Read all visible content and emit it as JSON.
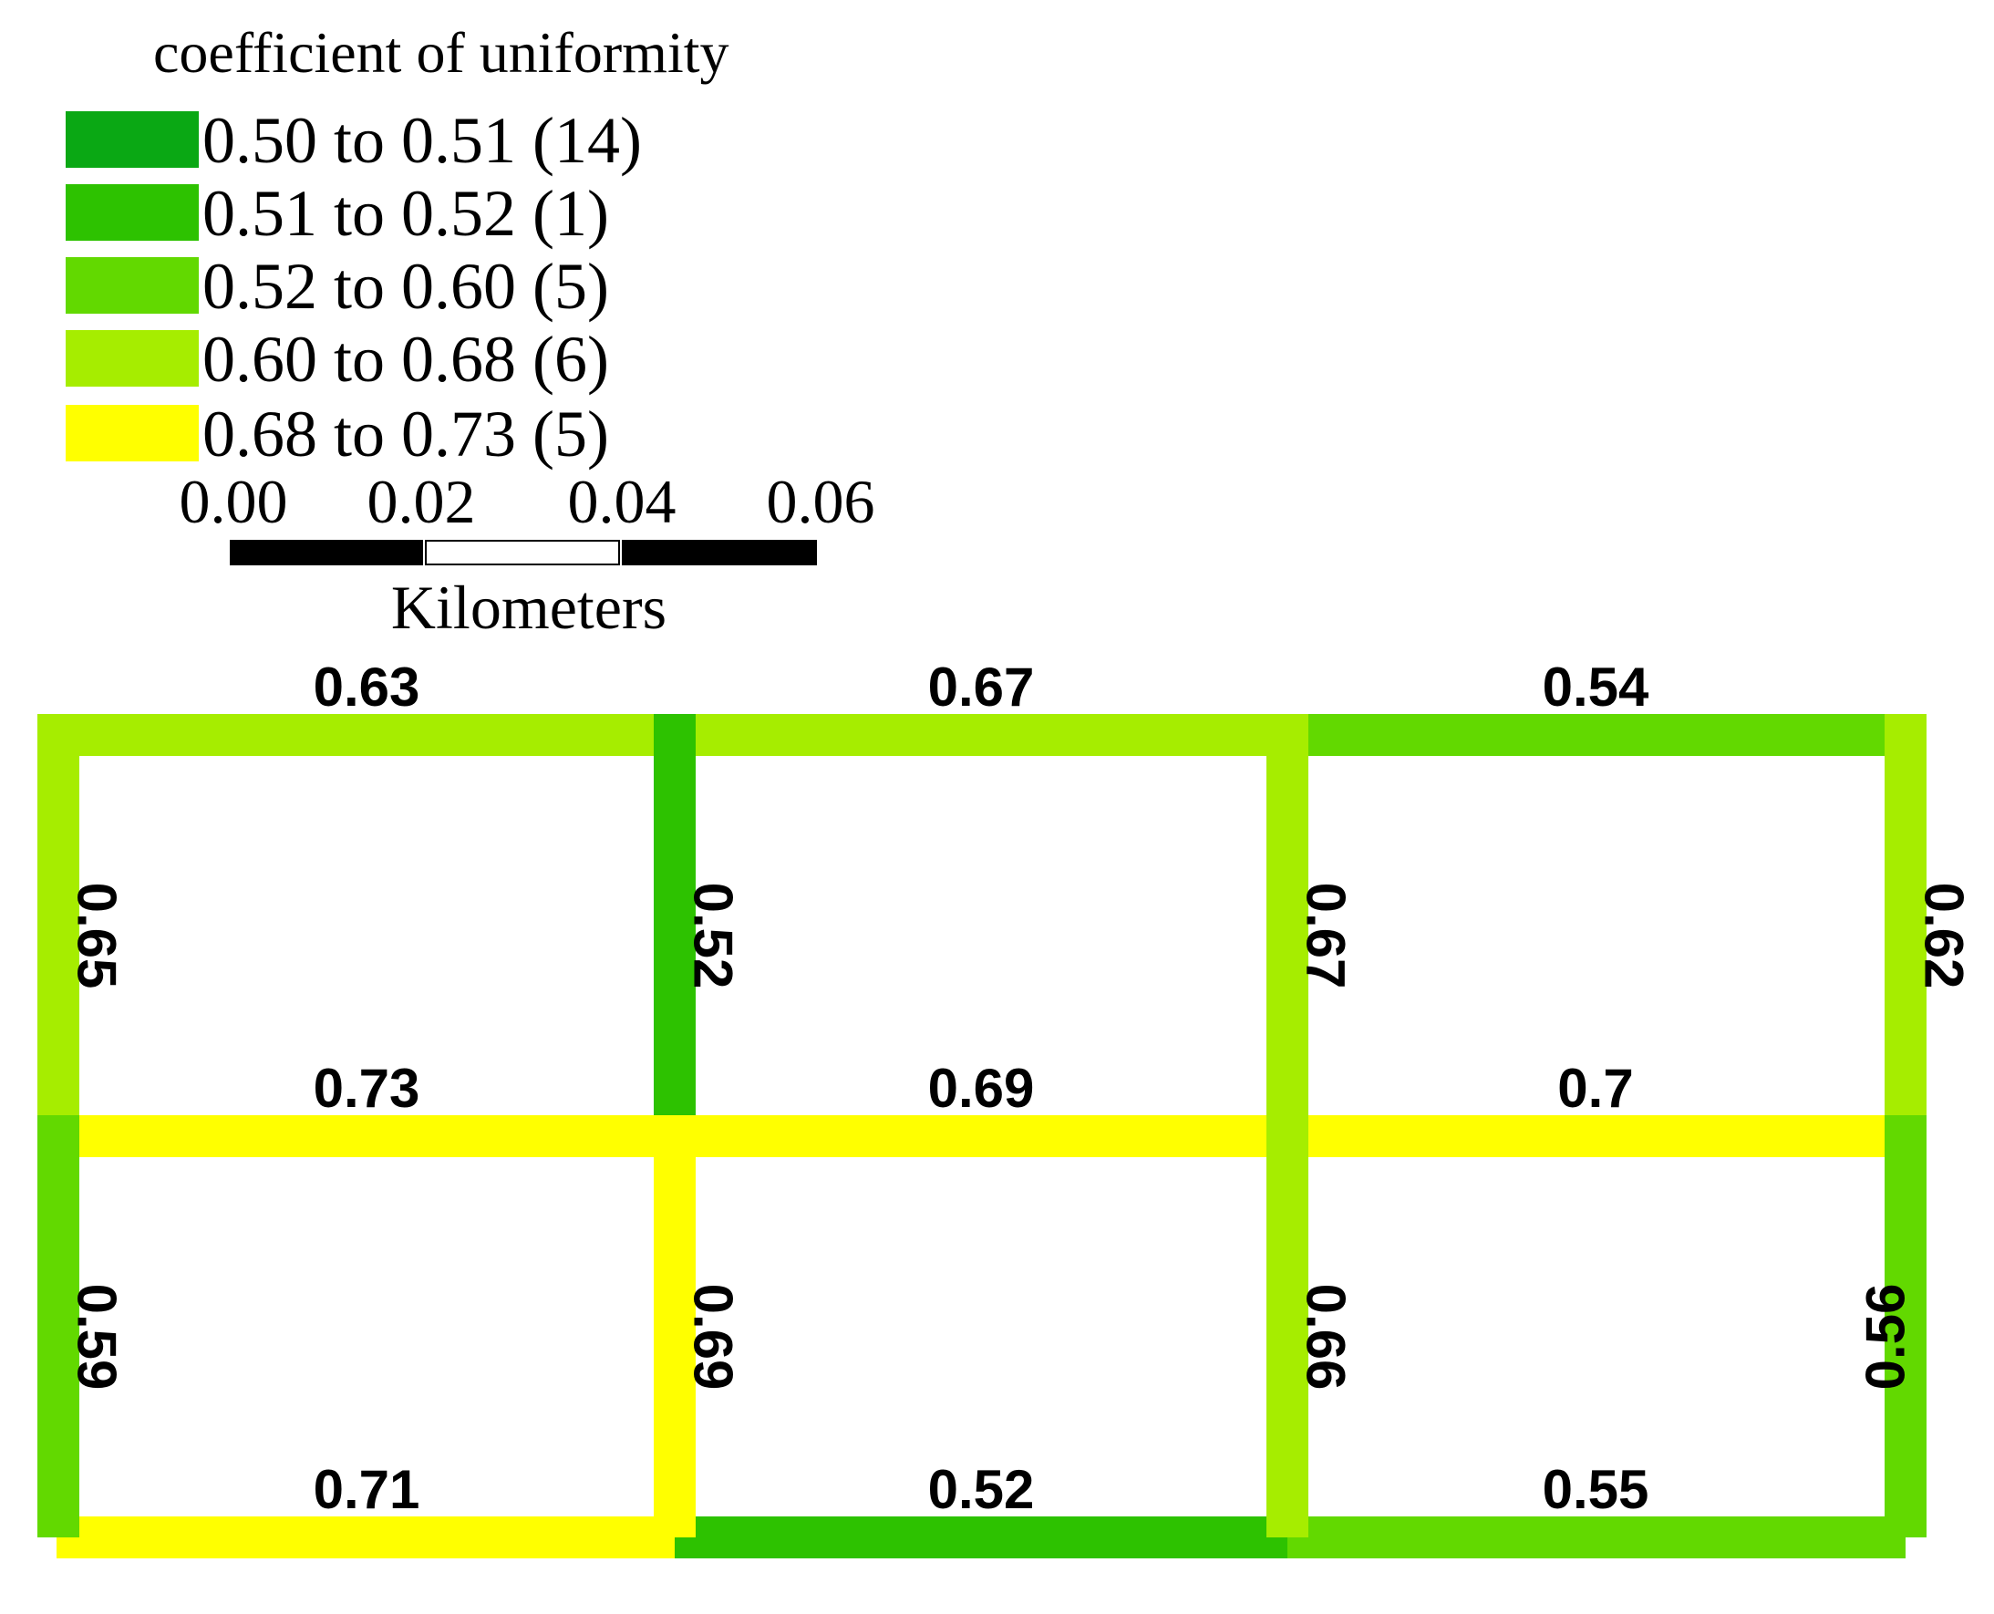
{
  "legend": {
    "title": "coefficient of uniformity",
    "classes": [
      {
        "label": "0.50 to 0.51 (14)",
        "min": 0.5,
        "max": 0.51,
        "color": "#0aa814"
      },
      {
        "label": "0.51 to 0.52 (1)",
        "min": 0.51,
        "max": 0.52,
        "color": "#2dc200"
      },
      {
        "label": "0.52 to 0.60 (5)",
        "min": 0.52,
        "max": 0.6,
        "color": "#62d900"
      },
      {
        "label": "0.60 to 0.68 (6)",
        "min": 0.6,
        "max": 0.68,
        "color": "#a6ed00"
      },
      {
        "label": "0.68 to 0.73 (5)",
        "min": 0.68,
        "max": 0.73,
        "color": "#ffff00"
      }
    ]
  },
  "scale_bar": {
    "ticks": [
      "0.00",
      "0.02",
      "0.04",
      "0.06"
    ],
    "unit": "Kilometers"
  },
  "network": {
    "horizontal": [
      {
        "row": 0,
        "col": 0,
        "value": "0.63",
        "color": "#a6ed00"
      },
      {
        "row": 0,
        "col": 1,
        "value": "0.67",
        "color": "#a6ed00"
      },
      {
        "row": 0,
        "col": 2,
        "value": "0.54",
        "color": "#62d900"
      },
      {
        "row": 1,
        "col": 0,
        "value": "0.73",
        "color": "#ffff00"
      },
      {
        "row": 1,
        "col": 1,
        "value": "0.69",
        "color": "#ffff00"
      },
      {
        "row": 1,
        "col": 2,
        "value": "0.7",
        "color": "#ffff00"
      },
      {
        "row": 2,
        "col": 0,
        "value": "0.71",
        "color": "#ffff00"
      },
      {
        "row": 2,
        "col": 1,
        "value": "0.52",
        "color": "#2dc200"
      },
      {
        "row": 2,
        "col": 2,
        "value": "0.55",
        "color": "#62d900"
      }
    ],
    "vertical": [
      {
        "line": 0,
        "cell": 0,
        "value": "0.65",
        "color": "#a6ed00"
      },
      {
        "line": 1,
        "cell": 0,
        "value": "0.52",
        "color": "#2dc200"
      },
      {
        "line": 2,
        "cell": 0,
        "value": "0.67",
        "color": "#a6ed00"
      },
      {
        "line": 3,
        "cell": 0,
        "value": "0.62",
        "color": "#a6ed00"
      },
      {
        "line": 0,
        "cell": 1,
        "value": "0.59",
        "color": "#62d900"
      },
      {
        "line": 1,
        "cell": 1,
        "value": "0.69",
        "color": "#ffff00"
      },
      {
        "line": 2,
        "cell": 1,
        "value": "0.66",
        "color": "#a6ed00"
      },
      {
        "line": 3,
        "cell": 1,
        "value": "0.56",
        "color": "#62d900"
      }
    ]
  }
}
